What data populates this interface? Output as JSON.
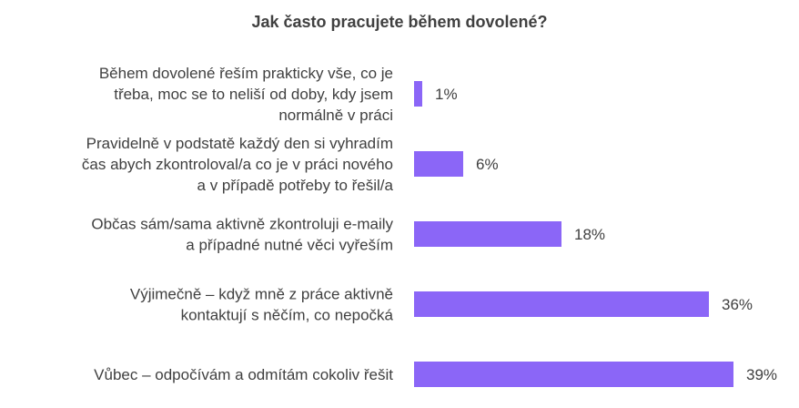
{
  "chart_data": {
    "type": "bar",
    "orientation": "horizontal",
    "title": "Jak často pracujete během dovolené?",
    "categories": [
      [
        "Během dovolené řeším prakticky vše, co je",
        "třeba, moc se to neliší od doby, kdy jsem",
        "normálně v práci"
      ],
      [
        "Pravidelně v podstatě každý den si vyhradím",
        "čas abych zkontroloval/a co je v práci nového",
        "a v případě potřeby to řešil/a"
      ],
      [
        "Občas sám/sama aktivně zkontroluji e-maily",
        "a případné nutné věci vyřeším"
      ],
      [
        "Výjimečně – když mně z práce aktivně",
        "kontaktují s něčím, co nepočká"
      ],
      [
        "Vůbec – odpočívám a odmítám cokoliv řešit"
      ]
    ],
    "values": [
      1,
      6,
      18,
      36,
      39
    ],
    "value_labels": [
      "1%",
      "6%",
      "18%",
      "36%",
      "39%"
    ],
    "bar_color": "#8b66f7",
    "xlabel": "",
    "ylabel": "",
    "xlim": [
      0,
      39
    ],
    "grid": false,
    "legend": "none"
  }
}
